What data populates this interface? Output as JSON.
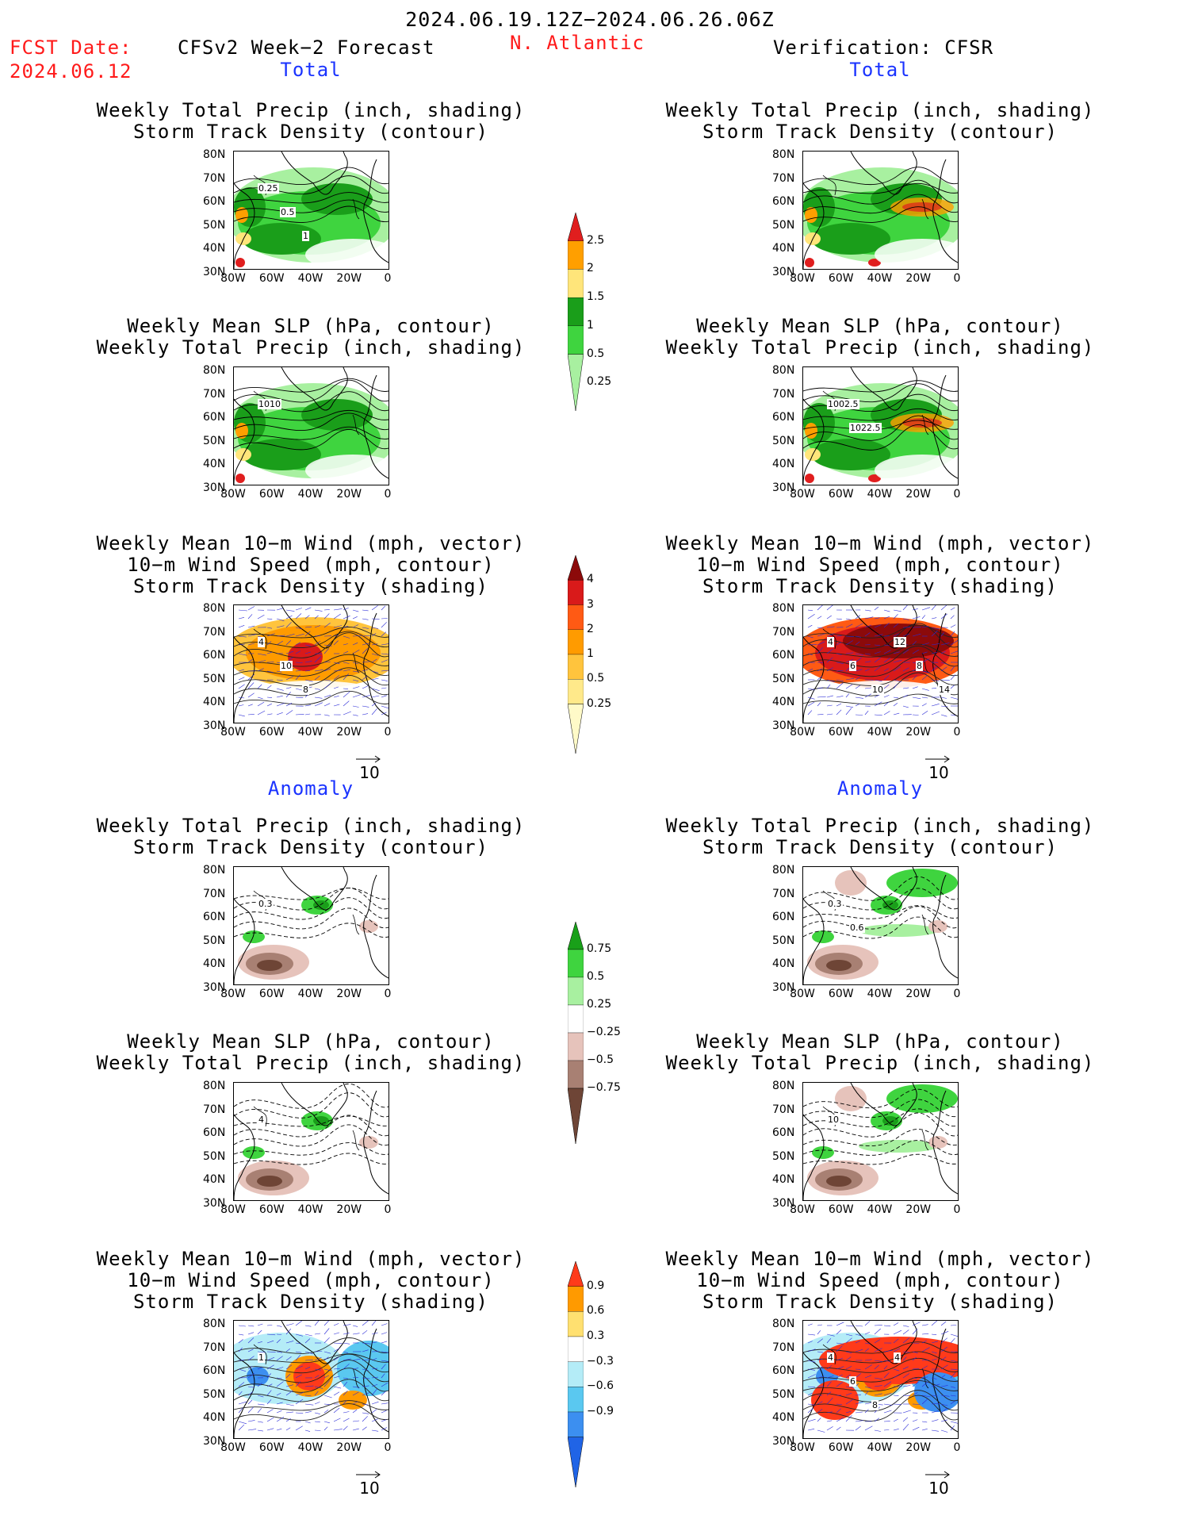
{
  "header": {
    "period": "2024.06.19.12Z−2024.06.26.06Z",
    "fcst_label": "FCST Date:",
    "fcst_date": "2024.06.12",
    "model": "CFSv2 Week−2 Forecast",
    "region": "N. Atlantic",
    "verification": "Verification: CFSR"
  },
  "sections": {
    "total": "Total",
    "anomaly": "Anomaly"
  },
  "titles": {
    "precip_track": [
      "Weekly Total Precip (inch, shading)",
      "Storm Track Density (contour)"
    ],
    "slp_precip": [
      "Weekly Mean SLP (hPa, contour)",
      "Weekly Total Precip (inch, shading)"
    ],
    "wind_track": [
      "Weekly Mean 10−m Wind (mph, vector)",
      "10−m Wind Speed (mph, contour)",
      "Storm Track Density (shading)"
    ]
  },
  "axes": {
    "lat": [
      "80N",
      "70N",
      "60N",
      "50N",
      "40N",
      "30N"
    ],
    "lon": [
      "80W",
      "60W",
      "40W",
      "20W",
      "0"
    ]
  },
  "vector_ref": "10",
  "colorbars": {
    "precip": {
      "labels": [
        "2.5",
        "2",
        "1.5",
        "1",
        "0.5",
        "0.25"
      ],
      "colors": [
        "#e01e1e",
        "#ff9f00",
        "#ffe57a",
        "#1a9e1a",
        "#3fd43f",
        "#a8f0a0"
      ]
    },
    "storm": {
      "labels": [
        "4",
        "3",
        "2",
        "1",
        "0.5",
        "0.25"
      ],
      "colors": [
        "#8c0a0a",
        "#d91a1a",
        "#ff5a14",
        "#ff9b00",
        "#ffc43d",
        "#ffe98a",
        "#fffac8"
      ]
    },
    "precip_anom": {
      "labels": [
        "0.75",
        "0.5",
        "0.25",
        "−0.25",
        "−0.5",
        "−0.75"
      ],
      "colors": [
        "#19a019",
        "#3fd43f",
        "#a8f0a0",
        "#ffffff",
        "#e6c3bb",
        "#a88073",
        "#6e4536"
      ]
    },
    "storm_anom": {
      "labels": [
        "0.9",
        "0.6",
        "0.3",
        "−0.3",
        "−0.6",
        "−0.9"
      ],
      "colors": [
        "#ff3a1a",
        "#ff9a00",
        "#ffe070",
        "#ffffff",
        "#b4ecf7",
        "#5ac8f0",
        "#3c8ff0",
        "#2064e6"
      ]
    }
  },
  "panels": {
    "fcst_total_precip": {
      "labels": [
        "0.25",
        "0.5",
        "1"
      ]
    },
    "fcst_total_slp": {
      "labels": [
        "1010"
      ]
    },
    "fcst_total_wind": {
      "labels": [
        "4",
        "10",
        "8"
      ]
    },
    "obs_total_slp": {
      "labels": [
        "1002.5",
        "1022.5"
      ]
    },
    "obs_total_wind": {
      "labels": [
        "4",
        "6",
        "10",
        "12",
        "8",
        "14"
      ]
    },
    "fcst_anom_precip": {
      "labels": [
        "0.3"
      ]
    },
    "fcst_anom_slp": {
      "labels": [
        "4"
      ]
    },
    "fcst_anom_wind": {
      "labels": [
        "1"
      ]
    },
    "obs_anom_precip": {
      "labels": [
        "0.3",
        "0.6"
      ]
    },
    "obs_anom_slp": {
      "labels": [
        "10"
      ]
    },
    "obs_anom_wind": {
      "labels": [
        "4",
        "6",
        "8",
        "4"
      ]
    }
  }
}
